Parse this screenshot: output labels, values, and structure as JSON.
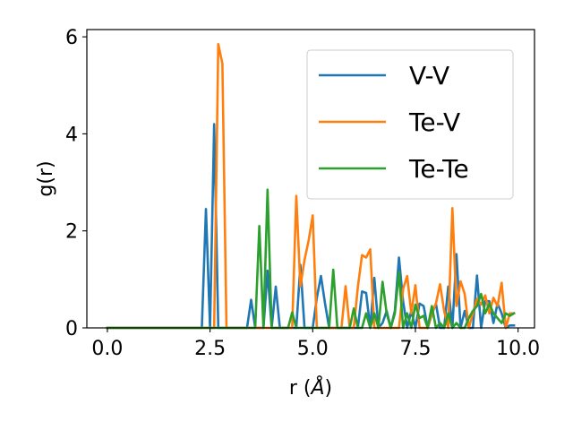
{
  "chart_data": {
    "type": "line",
    "title": "",
    "xlabel": "r (Å)",
    "xlabel_parts": {
      "prefix": "r (",
      "unit": "Å",
      "suffix": ")"
    },
    "ylabel": "g(r)",
    "xlim": [
      -0.5,
      10.4
    ],
    "ylim": [
      0,
      6.15
    ],
    "xticks": [
      0.0,
      2.5,
      5.0,
      7.5,
      10.0
    ],
    "xtick_labels": [
      "0.0",
      "2.5",
      "5.0",
      "7.5",
      "10.0"
    ],
    "yticks": [
      0,
      2,
      4,
      6
    ],
    "ytick_labels": [
      "0",
      "2",
      "4",
      "6"
    ],
    "grid": false,
    "legend_position": "top-right",
    "x": [
      0.0,
      0.1,
      0.2,
      0.3,
      0.4,
      0.5,
      0.6,
      0.7,
      0.8,
      0.9,
      1.0,
      1.1,
      1.2,
      1.3,
      1.4,
      1.5,
      1.6,
      1.7,
      1.8,
      1.9,
      2.0,
      2.1,
      2.2,
      2.3,
      2.4,
      2.5,
      2.6,
      2.7,
      2.8,
      2.9,
      3.0,
      3.1,
      3.2,
      3.3,
      3.4,
      3.5,
      3.6,
      3.7,
      3.8,
      3.9,
      4.0,
      4.1,
      4.2,
      4.3,
      4.4,
      4.5,
      4.6,
      4.7,
      4.8,
      4.9,
      5.0,
      5.1,
      5.2,
      5.3,
      5.4,
      5.5,
      5.6,
      5.7,
      5.8,
      5.9,
      6.0,
      6.1,
      6.2,
      6.3,
      6.4,
      6.5,
      6.6,
      6.7,
      6.8,
      6.9,
      7.0,
      7.1,
      7.2,
      7.3,
      7.4,
      7.5,
      7.6,
      7.7,
      7.8,
      7.9,
      8.0,
      8.1,
      8.2,
      8.3,
      8.4,
      8.5,
      8.6,
      8.7,
      8.8,
      8.9,
      9.0,
      9.1,
      9.2,
      9.3,
      9.4,
      9.5,
      9.6,
      9.7,
      9.8,
      9.9
    ],
    "series": [
      {
        "name": "V-V",
        "color": "#1f77b4",
        "values": [
          0,
          0,
          0,
          0,
          0,
          0,
          0,
          0,
          0,
          0,
          0,
          0,
          0,
          0,
          0,
          0,
          0,
          0,
          0,
          0,
          0,
          0,
          0,
          0,
          2.45,
          0,
          4.2,
          0,
          0,
          0,
          0,
          0,
          0,
          0,
          0,
          0.58,
          0,
          0,
          0,
          1.18,
          0,
          0.85,
          0,
          0,
          0,
          0,
          0,
          1.3,
          0,
          0,
          0,
          0.62,
          1.07,
          0.5,
          0,
          0,
          0,
          0,
          0,
          0,
          0,
          0,
          0.75,
          0.72,
          0,
          1.03,
          0,
          0.1,
          0.35,
          0,
          0.35,
          1.45,
          0.55,
          0,
          0.35,
          0,
          0.5,
          0.45,
          0,
          0.28,
          0.5,
          0,
          0,
          0.85,
          0,
          1.52,
          0,
          0.35,
          0.0,
          0,
          1.08,
          0,
          0.55,
          0.55,
          0.1,
          0.5,
          0.3,
          0,
          0.05,
          0.05
        ]
      },
      {
        "name": "Te-V",
        "color": "#ff7f0e",
        "values": [
          0,
          0,
          0,
          0,
          0,
          0,
          0,
          0,
          0,
          0,
          0,
          0,
          0,
          0,
          0,
          0,
          0,
          0,
          0,
          0,
          0,
          0,
          0,
          0,
          0,
          0,
          0,
          5.85,
          5.45,
          0,
          0,
          0,
          0,
          0,
          0,
          0,
          0,
          0,
          0,
          0,
          0,
          0,
          0,
          0,
          0,
          0,
          2.72,
          0.85,
          1.4,
          1.8,
          2.32,
          0,
          0,
          0,
          0,
          0,
          0,
          0,
          0.86,
          0,
          0,
          0.85,
          1.5,
          1.45,
          1.62,
          0,
          0,
          0,
          0,
          0,
          0,
          0,
          0.8,
          1.07,
          0.3,
          0.88,
          0,
          0,
          0,
          0.3,
          0.5,
          0.9,
          0.35,
          0,
          2.47,
          0.45,
          0.96,
          0.7,
          0,
          0.3,
          0.6,
          0.48,
          0.67,
          0.3,
          0.62,
          0.45,
          0.93,
          0,
          0.3,
          0.3
        ]
      },
      {
        "name": "Te-Te",
        "color": "#2ca02c",
        "values": [
          0,
          0,
          0,
          0,
          0,
          0,
          0,
          0,
          0,
          0,
          0,
          0,
          0,
          0,
          0,
          0,
          0,
          0,
          0,
          0,
          0,
          0,
          0,
          0,
          0,
          0,
          0,
          0,
          0,
          0,
          0,
          0,
          0,
          0,
          0,
          0,
          0,
          2.1,
          0,
          2.85,
          0,
          0,
          0,
          0,
          0,
          0.32,
          0,
          0,
          0,
          0,
          0,
          0,
          0,
          0,
          0,
          1.2,
          0,
          0,
          0,
          0,
          0.4,
          0,
          0,
          0.3,
          0,
          0.3,
          0,
          0.95,
          0.3,
          0,
          0.3,
          1.15,
          0,
          0.3,
          0,
          0.48,
          0.2,
          0.25,
          0,
          0.45,
          0,
          0.1,
          0,
          0.3,
          0,
          0.1,
          0,
          0,
          0.2,
          0.35,
          0.45,
          0.7,
          0.3,
          0.5,
          0.3,
          0.2,
          0.1,
          0.3,
          0.25,
          0.3
        ]
      }
    ]
  }
}
